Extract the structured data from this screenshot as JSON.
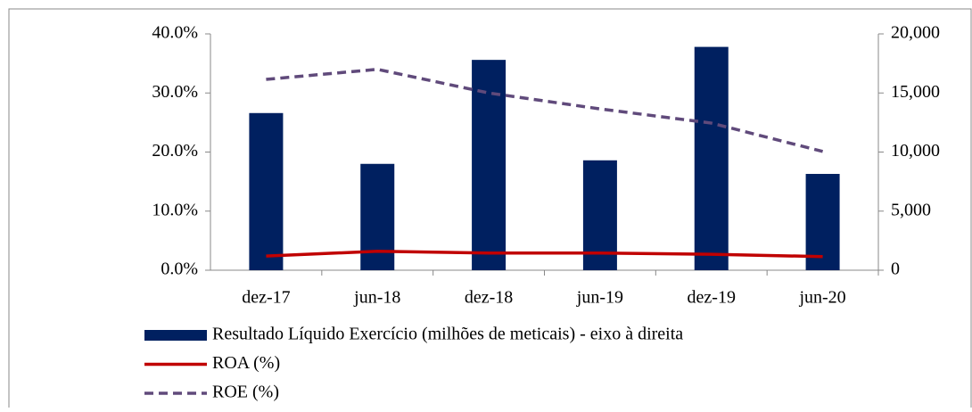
{
  "chart_data": {
    "type": "bar",
    "categories": [
      "dez-17",
      "jun-18",
      "dez-18",
      "jun-19",
      "dez-19",
      "jun-20"
    ],
    "series": [
      {
        "name": "Resultado Líquido Exercício (milhões de meticais) - eixo à direita",
        "type": "bar",
        "axis": "y2",
        "color": "#002060",
        "values": [
          13300,
          9000,
          17800,
          9300,
          18900,
          8150
        ]
      },
      {
        "name": "ROA (%)",
        "type": "line",
        "axis": "y",
        "color": "#c00000",
        "dash": "solid",
        "values": [
          2.4,
          3.2,
          2.9,
          2.9,
          2.7,
          2.3
        ]
      },
      {
        "name": "ROE (%)",
        "type": "line",
        "axis": "y",
        "color": "#604a7b",
        "dash": "dashed",
        "values": [
          32.3,
          34.0,
          30.0,
          27.3,
          24.9,
          20.1
        ]
      }
    ],
    "ylim": [
      0,
      40
    ],
    "yticks": [
      {
        "value": 0,
        "label": "0.0%"
      },
      {
        "value": 10,
        "label": "10.0%"
      },
      {
        "value": 20,
        "label": "20.0%"
      },
      {
        "value": 30,
        "label": "30.0%"
      },
      {
        "value": 40,
        "label": "40.0%"
      }
    ],
    "y2lim": [
      0,
      20000
    ],
    "y2ticks": [
      0,
      {
        "value": 5000,
        "label": "5,000"
      },
      {
        "value": 10000,
        "label": "10,000"
      },
      {
        "value": 15000,
        "label": "15,000"
      },
      {
        "value": 20000,
        "label": "20,000"
      }
    ],
    "grid": false,
    "legend": "bottom"
  }
}
